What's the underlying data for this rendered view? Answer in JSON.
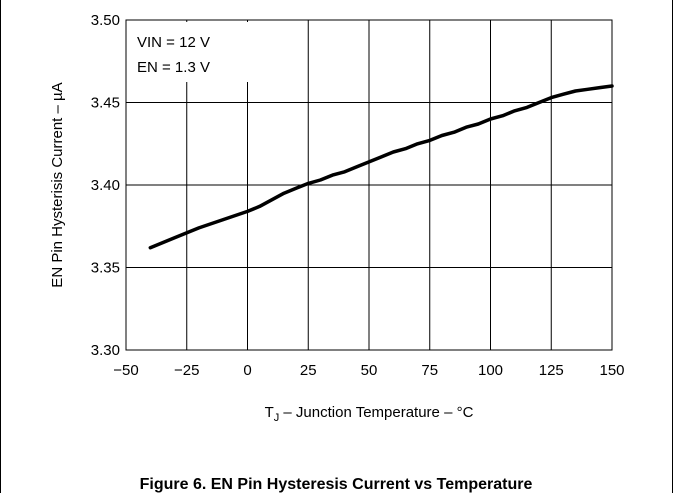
{
  "chart_data": {
    "type": "line",
    "title": "Figure 6. EN Pin Hysteresis Current vs Temperature",
    "xlabel_main": "T",
    "xlabel_sub": "J",
    "xlabel_rest": " – Junction Temperature – °C",
    "ylabel": "EN Pin Hysterisis Current – µA",
    "xlim": [
      -50,
      150
    ],
    "ylim": [
      3.3,
      3.5
    ],
    "x_ticks": [
      "−50",
      "−25",
      "0",
      "25",
      "50",
      "75",
      "100",
      "125",
      "150"
    ],
    "y_ticks": [
      "3.30",
      "3.35",
      "3.40",
      "3.45",
      "3.50"
    ],
    "grid": true,
    "annotations": [
      "VIN = 12 V",
      "EN = 1.3 V"
    ],
    "series": [
      {
        "x": [
          -40,
          -30,
          -20,
          -10,
          0,
          5,
          10,
          15,
          20,
          25,
          30,
          35,
          40,
          45,
          50,
          55,
          60,
          65,
          70,
          75,
          80,
          85,
          90,
          95,
          100,
          105,
          110,
          115,
          120,
          125,
          130,
          135,
          140,
          145,
          150
        ],
        "values": [
          3.362,
          3.368,
          3.374,
          3.379,
          3.384,
          3.387,
          3.391,
          3.395,
          3.398,
          3.401,
          3.403,
          3.406,
          3.408,
          3.411,
          3.414,
          3.417,
          3.42,
          3.422,
          3.425,
          3.427,
          3.43,
          3.432,
          3.435,
          3.437,
          3.44,
          3.442,
          3.445,
          3.447,
          3.45,
          3.453,
          3.455,
          3.457,
          3.458,
          3.459,
          3.46
        ]
      }
    ]
  }
}
